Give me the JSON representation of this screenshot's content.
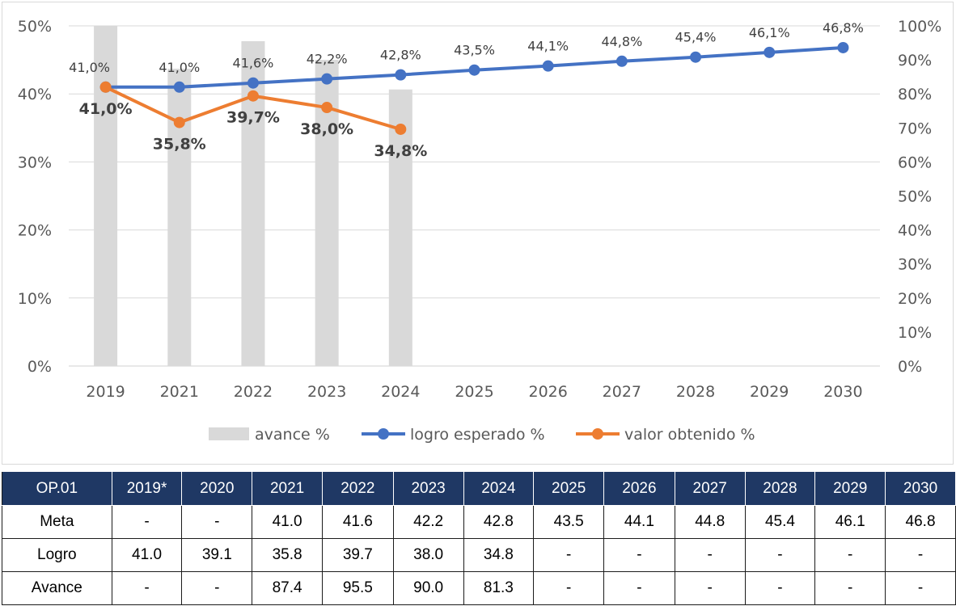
{
  "chart_data": {
    "type": "bar+line",
    "categories": [
      "2019",
      "2021",
      "2022",
      "2023",
      "2024",
      "2025",
      "2026",
      "2027",
      "2028",
      "2029",
      "2030"
    ],
    "left_axis": {
      "ticks": [
        "0%",
        "10%",
        "20%",
        "30%",
        "40%",
        "50%"
      ],
      "range": [
        0,
        50
      ]
    },
    "right_axis": {
      "ticks": [
        "0%",
        "10%",
        "20%",
        "30%",
        "40%",
        "50%",
        "60%",
        "70%",
        "80%",
        "90%",
        "100%"
      ],
      "range": [
        0,
        100
      ]
    },
    "series": [
      {
        "name": "avance %",
        "type": "bar",
        "axis": "right",
        "color": "#d9d9d9",
        "values": [
          100,
          87.4,
          95.5,
          90.0,
          81.3,
          null,
          null,
          null,
          null,
          null,
          null
        ]
      },
      {
        "name": "logro esperado %",
        "type": "line",
        "axis": "left",
        "color": "#4472c4",
        "values": [
          41.0,
          41.0,
          41.6,
          42.2,
          42.8,
          43.5,
          44.1,
          44.8,
          45.4,
          46.1,
          46.8
        ],
        "labels": [
          "41,0%",
          "41,0%",
          "41,6%",
          "42,2%",
          "42,8%",
          "43,5%",
          "44,1%",
          "44,8%",
          "45,4%",
          "46,1%",
          "46,8%"
        ]
      },
      {
        "name": "valor obtenido %",
        "type": "line",
        "axis": "left",
        "color": "#ed7d31",
        "values": [
          41.0,
          35.8,
          39.7,
          38.0,
          34.8,
          null,
          null,
          null,
          null,
          null,
          null
        ],
        "labels": [
          "41,0%",
          "35,8%",
          "39,7%",
          "38,0%",
          "34,8%"
        ]
      }
    ],
    "legend": [
      "avance %",
      "logro esperado %",
      "valor obtenido %"
    ],
    "legend_position": "bottom",
    "grid": true
  },
  "table": {
    "header": [
      "OP.01",
      "2019*",
      "2020",
      "2021",
      "2022",
      "2023",
      "2024",
      "2025",
      "2026",
      "2027",
      "2028",
      "2029",
      "2030"
    ],
    "rows": [
      [
        "Meta",
        "-",
        "-",
        "41.0",
        "41.6",
        "42.2",
        "42.8",
        "43.5",
        "44.1",
        "44.8",
        "45.4",
        "46.1",
        "46.8"
      ],
      [
        "Logro",
        "41.0",
        "39.1",
        "35.8",
        "39.7",
        "38.0",
        "34.8",
        "-",
        "-",
        "-",
        "-",
        "-",
        "-"
      ],
      [
        "Avance",
        "-",
        "-",
        "87.4",
        "95.5",
        "90.0",
        "81.3",
        "-",
        "-",
        "-",
        "-",
        "-",
        "-"
      ]
    ]
  }
}
